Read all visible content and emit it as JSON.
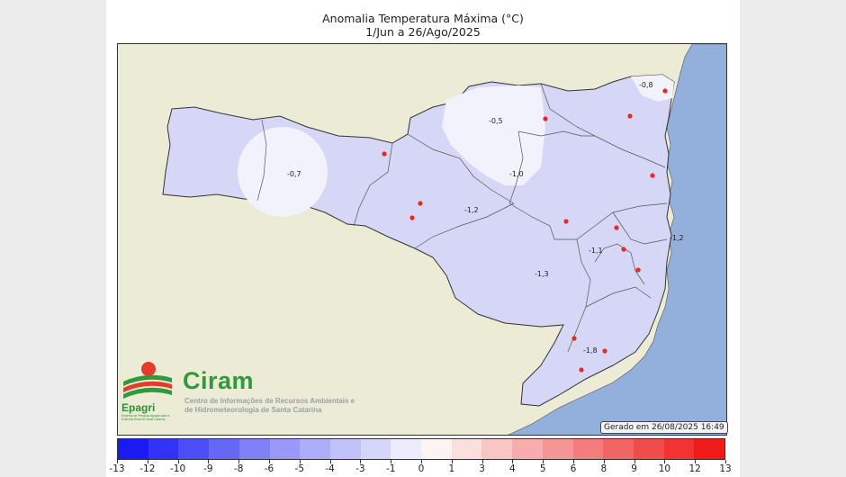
{
  "title": "Anomalia Temperatura Máxima (°C)",
  "period": "1/Jun a 26/Ago/2025",
  "generated": "Gerado em 26/08/2025 16:49",
  "logo": {
    "epagri": "Epagri",
    "epagri_sub": "Empresa de Pesquisa Agropecuária e Extensão Rural de Santa Catarina",
    "ciram": "Ciram",
    "ciram_sub": "Centro de Informações de Recursos Ambientais e de Hidrometeorologia de Santa Catarina"
  },
  "colors": {
    "ocean": "#93afdc",
    "neighbor": "#ecebd6",
    "state_fill": "#d6d7f6",
    "warm_zone": "#f1f2fb",
    "station": "#e8291f"
  },
  "isoline_labels": [
    "-0,8",
    "-0,5",
    "-0,7",
    "-1,0",
    "-1,2",
    "-1,1",
    "-1,2",
    "-1,3",
    "-1,8"
  ],
  "colorbar": {
    "ticks": [
      "-13",
      "-12",
      "-10",
      "-9",
      "-8",
      "-6",
      "-5",
      "-4",
      "-3",
      "-1",
      "0",
      "1",
      "3",
      "4",
      "5",
      "6",
      "8",
      "9",
      "10",
      "12",
      "13"
    ],
    "colors": [
      "#1a1af5",
      "#3333f7",
      "#4d4df7",
      "#6666f7",
      "#8080f8",
      "#9999f9",
      "#adadf9",
      "#c2c2fa",
      "#d6d6fb",
      "#ebebfc",
      "#fdf3f3",
      "#fbdede",
      "#f9c6c6",
      "#f7adad",
      "#f69595",
      "#f57c7c",
      "#f36464",
      "#f24b4b",
      "#f13333",
      "#ef1a1a"
    ]
  }
}
